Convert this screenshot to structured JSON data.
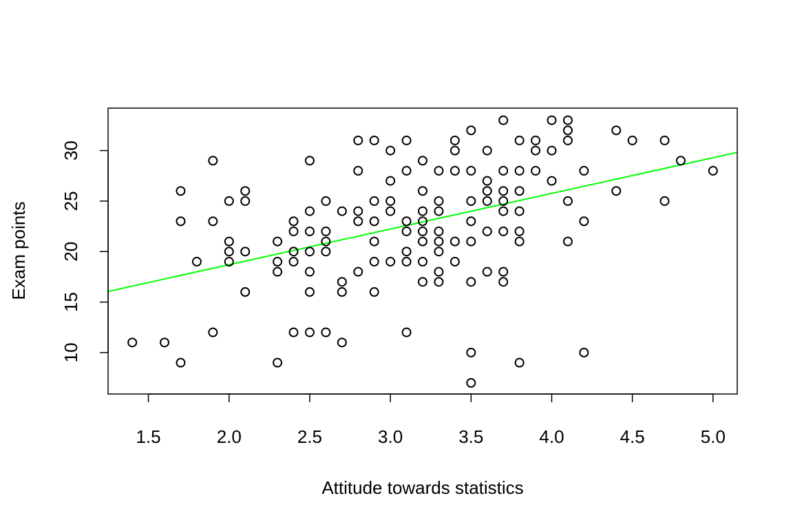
{
  "chart_data": {
    "type": "scatter",
    "title": "",
    "xlabel": "Attitude towards statistics",
    "ylabel": "Exam points",
    "xlim": [
      1.25,
      5.15
    ],
    "ylim": [
      5.9,
      34.2
    ],
    "x_ticks": [
      1.5,
      2.0,
      2.5,
      3.0,
      3.5,
      4.0,
      4.5,
      5.0
    ],
    "x_tick_labels": [
      "1.5",
      "2.0",
      "2.5",
      "3.0",
      "3.5",
      "4.0",
      "4.5",
      "5.0"
    ],
    "y_ticks": [
      10,
      15,
      20,
      25,
      30
    ],
    "y_tick_labels": [
      "10",
      "15",
      "20",
      "25",
      "30"
    ],
    "grid": false,
    "legend": "none",
    "marker": "open-circle",
    "colors": {
      "points": "#000000",
      "regression_line": "#00ff00",
      "background": "#ffffff",
      "frame": "#000000"
    },
    "regression_line": {
      "intercept": 11.64,
      "slope": 3.53
    },
    "points": [
      [
        1.4,
        11
      ],
      [
        1.6,
        11
      ],
      [
        1.7,
        26
      ],
      [
        1.7,
        23
      ],
      [
        1.7,
        9
      ],
      [
        1.8,
        19
      ],
      [
        1.9,
        29
      ],
      [
        1.9,
        23
      ],
      [
        1.9,
        12
      ],
      [
        2.0,
        25
      ],
      [
        2.0,
        21
      ],
      [
        2.0,
        20
      ],
      [
        2.0,
        19
      ],
      [
        2.1,
        26
      ],
      [
        2.1,
        25
      ],
      [
        2.1,
        20
      ],
      [
        2.1,
        16
      ],
      [
        2.3,
        21
      ],
      [
        2.3,
        19
      ],
      [
        2.3,
        18
      ],
      [
        2.3,
        9
      ],
      [
        2.4,
        23
      ],
      [
        2.4,
        22
      ],
      [
        2.4,
        20
      ],
      [
        2.4,
        19
      ],
      [
        2.4,
        12
      ],
      [
        2.5,
        29
      ],
      [
        2.5,
        24
      ],
      [
        2.5,
        22
      ],
      [
        2.5,
        20
      ],
      [
        2.5,
        18
      ],
      [
        2.5,
        16
      ],
      [
        2.5,
        12
      ],
      [
        2.6,
        25
      ],
      [
        2.6,
        22
      ],
      [
        2.6,
        21
      ],
      [
        2.6,
        20
      ],
      [
        2.6,
        12
      ],
      [
        2.7,
        24
      ],
      [
        2.7,
        17
      ],
      [
        2.7,
        16
      ],
      [
        2.7,
        11
      ],
      [
        2.8,
        31
      ],
      [
        2.8,
        28
      ],
      [
        2.8,
        24
      ],
      [
        2.8,
        23
      ],
      [
        2.8,
        18
      ],
      [
        2.9,
        31
      ],
      [
        2.9,
        25
      ],
      [
        2.9,
        23
      ],
      [
        2.9,
        21
      ],
      [
        2.9,
        19
      ],
      [
        2.9,
        16
      ],
      [
        3.0,
        30
      ],
      [
        3.0,
        27
      ],
      [
        3.0,
        25
      ],
      [
        3.0,
        24
      ],
      [
        3.0,
        19
      ],
      [
        3.1,
        31
      ],
      [
        3.1,
        28
      ],
      [
        3.1,
        23
      ],
      [
        3.1,
        22
      ],
      [
        3.1,
        20
      ],
      [
        3.1,
        19
      ],
      [
        3.1,
        12
      ],
      [
        3.2,
        29
      ],
      [
        3.2,
        26
      ],
      [
        3.2,
        24
      ],
      [
        3.2,
        23
      ],
      [
        3.2,
        22
      ],
      [
        3.2,
        21
      ],
      [
        3.2,
        19
      ],
      [
        3.2,
        17
      ],
      [
        3.3,
        28
      ],
      [
        3.3,
        25
      ],
      [
        3.3,
        24
      ],
      [
        3.3,
        22
      ],
      [
        3.3,
        21
      ],
      [
        3.3,
        20
      ],
      [
        3.3,
        18
      ],
      [
        3.3,
        17
      ],
      [
        3.4,
        31
      ],
      [
        3.4,
        30
      ],
      [
        3.4,
        28
      ],
      [
        3.4,
        21
      ],
      [
        3.4,
        19
      ],
      [
        3.5,
        32
      ],
      [
        3.5,
        28
      ],
      [
        3.5,
        25
      ],
      [
        3.5,
        23
      ],
      [
        3.5,
        21
      ],
      [
        3.5,
        17
      ],
      [
        3.5,
        10
      ],
      [
        3.5,
        7
      ],
      [
        3.6,
        30
      ],
      [
        3.6,
        27
      ],
      [
        3.6,
        26
      ],
      [
        3.6,
        25
      ],
      [
        3.6,
        22
      ],
      [
        3.6,
        18
      ],
      [
        3.7,
        33
      ],
      [
        3.7,
        28
      ],
      [
        3.7,
        26
      ],
      [
        3.7,
        25
      ],
      [
        3.7,
        24
      ],
      [
        3.7,
        22
      ],
      [
        3.7,
        18
      ],
      [
        3.7,
        17
      ],
      [
        3.8,
        31
      ],
      [
        3.8,
        28
      ],
      [
        3.8,
        26
      ],
      [
        3.8,
        24
      ],
      [
        3.8,
        22
      ],
      [
        3.8,
        21
      ],
      [
        3.8,
        9
      ],
      [
        3.9,
        31
      ],
      [
        3.9,
        30
      ],
      [
        3.9,
        28
      ],
      [
        4.0,
        33
      ],
      [
        4.0,
        30
      ],
      [
        4.0,
        27
      ],
      [
        4.1,
        33
      ],
      [
        4.1,
        32
      ],
      [
        4.1,
        31
      ],
      [
        4.1,
        25
      ],
      [
        4.1,
        21
      ],
      [
        4.2,
        28
      ],
      [
        4.2,
        23
      ],
      [
        4.2,
        10
      ],
      [
        4.4,
        32
      ],
      [
        4.4,
        26
      ],
      [
        4.5,
        31
      ],
      [
        4.7,
        31
      ],
      [
        4.7,
        25
      ],
      [
        4.8,
        29
      ],
      [
        5.0,
        28
      ]
    ]
  }
}
